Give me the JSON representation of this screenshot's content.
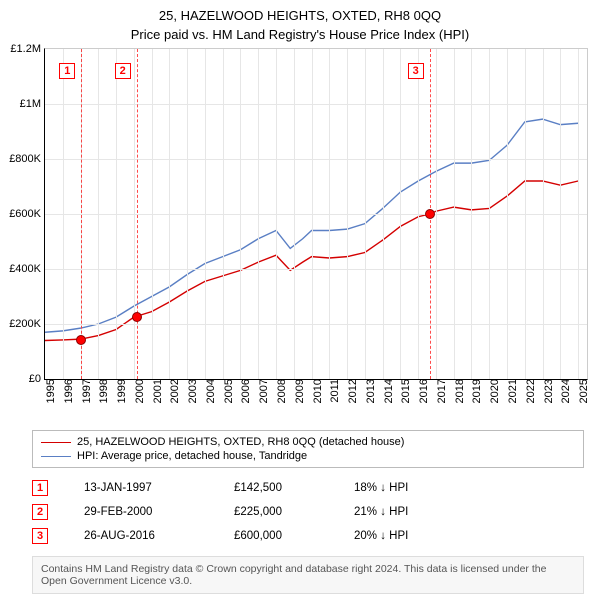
{
  "titles": {
    "line1": "25, HAZELWOOD HEIGHTS, OXTED, RH8 0QQ",
    "line2": "Price paid vs. HM Land Registry's House Price Index (HPI)"
  },
  "chart": {
    "type": "line",
    "x_domain": [
      1995,
      2025.5
    ],
    "y_domain": [
      0,
      1200000
    ],
    "y_ticks": [
      {
        "v": 0,
        "label": "£0"
      },
      {
        "v": 200000,
        "label": "£200K"
      },
      {
        "v": 400000,
        "label": "£400K"
      },
      {
        "v": 600000,
        "label": "£600K"
      },
      {
        "v": 800000,
        "label": "£800K"
      },
      {
        "v": 1000000,
        "label": "£1M"
      },
      {
        "v": 1200000,
        "label": "£1.2M"
      }
    ],
    "x_ticks": [
      "1995",
      "1996",
      "1997",
      "1998",
      "1999",
      "2000",
      "2001",
      "2002",
      "2003",
      "2004",
      "2005",
      "2006",
      "2007",
      "2008",
      "2009",
      "2010",
      "2011",
      "2012",
      "2013",
      "2014",
      "2015",
      "2016",
      "2017",
      "2018",
      "2019",
      "2020",
      "2021",
      "2022",
      "2023",
      "2024",
      "2025"
    ],
    "series": [
      {
        "name": "25, HAZELWOOD HEIGHTS, OXTED, RH8 0QQ (detached house)",
        "color": "#d40000",
        "line_width": 1.4,
        "points": [
          [
            1995,
            140000
          ],
          [
            1996,
            142000
          ],
          [
            1997,
            145000
          ],
          [
            1998,
            158000
          ],
          [
            1999,
            180000
          ],
          [
            2000,
            225000
          ],
          [
            2001,
            245000
          ],
          [
            2002,
            280000
          ],
          [
            2003,
            320000
          ],
          [
            2004,
            355000
          ],
          [
            2005,
            375000
          ],
          [
            2006,
            395000
          ],
          [
            2007,
            425000
          ],
          [
            2008,
            450000
          ],
          [
            2008.8,
            395000
          ],
          [
            2009.5,
            425000
          ],
          [
            2010,
            445000
          ],
          [
            2011,
            440000
          ],
          [
            2012,
            445000
          ],
          [
            2013,
            460000
          ],
          [
            2014,
            505000
          ],
          [
            2015,
            555000
          ],
          [
            2016,
            590000
          ],
          [
            2016.65,
            600000
          ],
          [
            2017,
            610000
          ],
          [
            2018,
            625000
          ],
          [
            2019,
            615000
          ],
          [
            2020,
            620000
          ],
          [
            2021,
            665000
          ],
          [
            2022,
            720000
          ],
          [
            2023,
            720000
          ],
          [
            2024,
            705000
          ],
          [
            2025,
            720000
          ]
        ]
      },
      {
        "name": "HPI: Average price, detached house, Tandridge",
        "color": "#5a7fc4",
        "line_width": 1.4,
        "points": [
          [
            1995,
            170000
          ],
          [
            1996,
            175000
          ],
          [
            1997,
            185000
          ],
          [
            1998,
            200000
          ],
          [
            1999,
            225000
          ],
          [
            2000,
            265000
          ],
          [
            2001,
            300000
          ],
          [
            2002,
            335000
          ],
          [
            2003,
            380000
          ],
          [
            2004,
            420000
          ],
          [
            2005,
            445000
          ],
          [
            2006,
            470000
          ],
          [
            2007,
            510000
          ],
          [
            2008,
            540000
          ],
          [
            2008.8,
            475000
          ],
          [
            2009.5,
            510000
          ],
          [
            2010,
            540000
          ],
          [
            2011,
            540000
          ],
          [
            2012,
            545000
          ],
          [
            2013,
            565000
          ],
          [
            2014,
            620000
          ],
          [
            2015,
            680000
          ],
          [
            2016,
            720000
          ],
          [
            2017,
            755000
          ],
          [
            2018,
            785000
          ],
          [
            2019,
            785000
          ],
          [
            2020,
            795000
          ],
          [
            2021,
            850000
          ],
          [
            2022,
            935000
          ],
          [
            2023,
            945000
          ],
          [
            2024,
            925000
          ],
          [
            2025,
            930000
          ]
        ]
      }
    ],
    "markers": [
      {
        "n": "1",
        "x": 1997.04,
        "y": 142500
      },
      {
        "n": "2",
        "x": 2000.16,
        "y": 225000
      },
      {
        "n": "3",
        "x": 2016.65,
        "y": 600000
      }
    ],
    "grid_color": "#e6e6e6",
    "background": "#ffffff"
  },
  "legend": [
    {
      "color": "#d40000",
      "label": "25, HAZELWOOD HEIGHTS, OXTED, RH8 0QQ (detached house)"
    },
    {
      "color": "#5a7fc4",
      "label": "HPI: Average price, detached house, Tandridge"
    }
  ],
  "annotations": [
    {
      "n": "1",
      "date": "13-JAN-1997",
      "price": "£142,500",
      "pct": "18% ↓ HPI"
    },
    {
      "n": "2",
      "date": "29-FEB-2000",
      "price": "£225,000",
      "pct": "21% ↓ HPI"
    },
    {
      "n": "3",
      "date": "26-AUG-2016",
      "price": "£600,000",
      "pct": "20% ↓ HPI"
    }
  ],
  "footer": "Contains HM Land Registry data © Crown copyright and database right 2024. This data is licensed under the Open Government Licence v3.0."
}
